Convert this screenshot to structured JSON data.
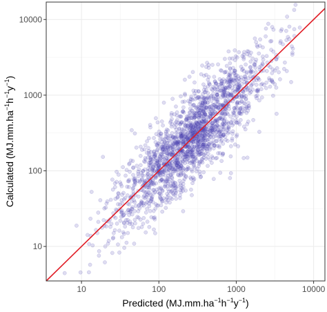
{
  "chart_data": {
    "type": "scatter",
    "title": "",
    "xlabel": {
      "prefix": "Predicted (MJ.mm.ha",
      "mid": "h",
      "mid2": "y",
      "suffix": ")",
      "sup": "−1"
    },
    "ylabel": {
      "prefix": "Calculated (MJ.mm.ha",
      "mid": "h",
      "mid2": "y",
      "suffix": ")",
      "sup": "−1"
    },
    "x_scale": "log10",
    "y_scale": "log10",
    "xlim": [
      3.5,
      14000
    ],
    "ylim": [
      3.5,
      17000
    ],
    "x_ticks": [
      10,
      100,
      1000,
      10000
    ],
    "y_ticks": [
      10,
      100,
      1000,
      10000
    ],
    "x_tick_labels": [
      "10",
      "100",
      "1000",
      "10000"
    ],
    "y_tick_labels": [
      "10",
      "100",
      "1000",
      "10000"
    ],
    "grid": true,
    "legend": "none",
    "reference_line": {
      "type": "1:1",
      "color": "#e01b24"
    },
    "point_color": "#4b45b0",
    "point_fill_opacity": 0.18,
    "point_count_approx": 2000,
    "point_distribution": {
      "log10_x_mean": 2.45,
      "log10_x_sd": 0.5,
      "log10_x_min": 0.55,
      "log10_x_max": 3.83,
      "slope": 1.0,
      "intercept": 0.0,
      "log10_residual_sd": 0.28
    }
  }
}
